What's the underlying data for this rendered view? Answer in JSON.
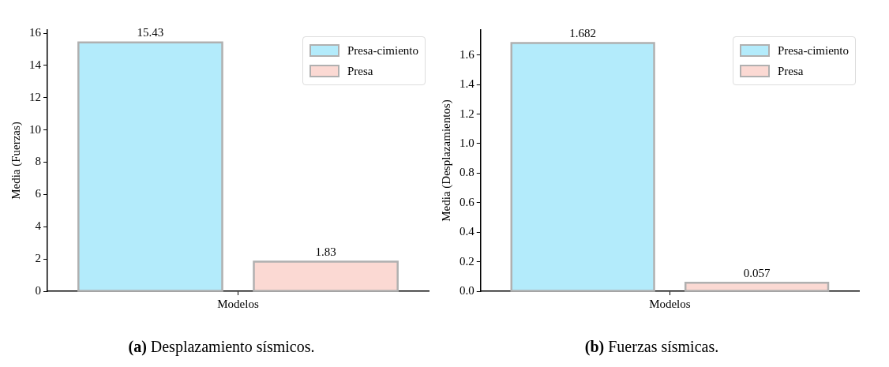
{
  "chart_data": [
    {
      "type": "bar",
      "categories": [
        "Modelos"
      ],
      "ylabel": "Media (Fuerzas)",
      "annotations": [
        "(a) Desplazamiento sísmicos."
      ],
      "series": [
        {
          "name": "Presa-cimiento",
          "color": "#b3ebfb",
          "values": [
            15.43
          ]
        },
        {
          "name": "Presa",
          "color": "#fbd9d3",
          "values": [
            1.83
          ]
        }
      ],
      "ylim": [
        0,
        16.2
      ],
      "yticks": [
        0,
        2,
        4,
        6,
        8,
        10,
        12,
        14,
        16
      ],
      "grid": false,
      "legend": "top right",
      "data_labels": true
    },
    {
      "type": "bar",
      "categories": [
        "Modelos"
      ],
      "ylabel": "Media (Desplazamientos)",
      "annotations": [
        "(b) Fuerzas sísmicas."
      ],
      "series": [
        {
          "name": "Presa-cimiento",
          "color": "#b3ebfb",
          "values": [
            1.682
          ]
        },
        {
          "name": "Presa",
          "color": "#fbd9d3",
          "values": [
            0.057
          ]
        }
      ],
      "ylim": [
        0,
        1.77
      ],
      "yticks": [
        {
          "value": 0,
          "label": "0.0"
        },
        0.2,
        0.4,
        0.6,
        0.8,
        {
          "value": 1,
          "label": "1.0"
        },
        1.2,
        1.4,
        1.6
      ],
      "grid": false,
      "legend": "top right",
      "data_labels": true
    }
  ]
}
